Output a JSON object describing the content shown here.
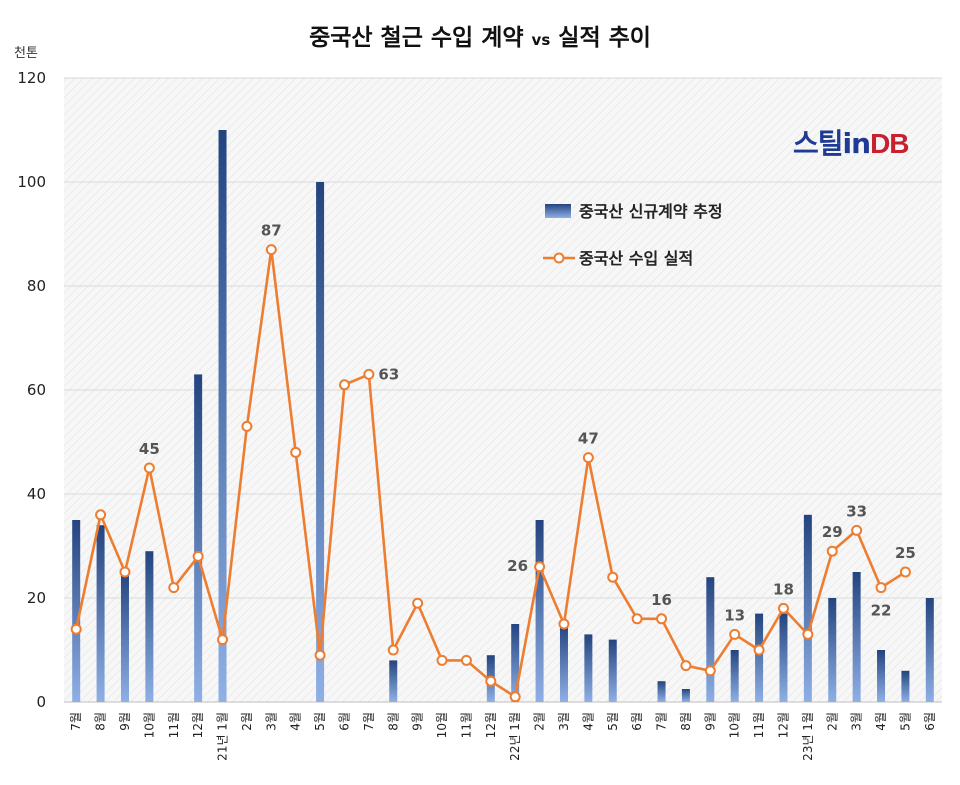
{
  "title": "중국산 철근 수입 계약 vs 실적 추이",
  "title_main": "중국산 철근 수입 계약",
  "title_vs": "vs",
  "title_tail": "실적 추이",
  "unit": "천톤",
  "logo": {
    "part1": "스틸",
    "part2": "in",
    "part3": "DB"
  },
  "colors": {
    "bar": "#2e4f8f",
    "bar_light": "#8fb0e6",
    "line": "#ed7d31",
    "grid": "#d9d9d9"
  },
  "chart_data": {
    "type": "bar+line",
    "ylim": [
      0,
      120
    ],
    "yticks": [
      0,
      20,
      40,
      60,
      80,
      100,
      120
    ],
    "grid": true,
    "legend_position": "top-right",
    "x_labels": [
      "7월",
      "8월",
      "9월",
      "10월",
      "11월",
      "12월",
      "21년 1월",
      "2월",
      "3월",
      "4월",
      "5월",
      "6월",
      "7월",
      "8월",
      "9월",
      "10월",
      "11월",
      "12월",
      "22년 1월",
      "2월",
      "3월",
      "4월",
      "5월",
      "6월",
      "7월",
      "8월",
      "9월",
      "10월",
      "11월",
      "12월",
      "23년 1월",
      "2월",
      "3월",
      "4월",
      "5월",
      "6월"
    ],
    "series": [
      {
        "name": "중국산 신규계약 추정",
        "kind": "bar",
        "values": [
          35,
          34,
          25,
          29,
          0,
          63,
          110,
          0,
          0,
          0,
          100,
          0,
          0,
          8,
          0,
          0,
          0,
          9,
          15,
          35,
          15,
          13,
          12,
          0,
          4,
          2.5,
          24,
          10,
          17,
          17,
          36,
          20,
          25,
          10,
          6,
          20
        ]
      },
      {
        "name": "중국산 수입 실적",
        "kind": "line",
        "values": [
          14,
          36,
          25,
          45,
          22,
          28,
          12,
          53,
          87,
          48,
          9,
          61,
          63,
          10,
          19,
          8,
          8,
          4,
          1,
          26,
          15,
          47,
          24,
          16,
          16,
          7,
          6,
          13,
          10,
          18,
          13,
          29,
          33,
          22,
          25,
          null
        ]
      }
    ],
    "data_labels": [
      {
        "index": 3,
        "value": "45"
      },
      {
        "index": 8,
        "value": "87"
      },
      {
        "index": 12,
        "value": "63"
      },
      {
        "index": 19,
        "value": "26"
      },
      {
        "index": 21,
        "value": "47"
      },
      {
        "index": 24,
        "value": "16"
      },
      {
        "index": 27,
        "value": "13"
      },
      {
        "index": 29,
        "value": "18"
      },
      {
        "index": 31,
        "value": "29"
      },
      {
        "index": 32,
        "value": "33"
      },
      {
        "index": 33,
        "value": "22"
      },
      {
        "index": 34,
        "value": "25"
      }
    ]
  }
}
